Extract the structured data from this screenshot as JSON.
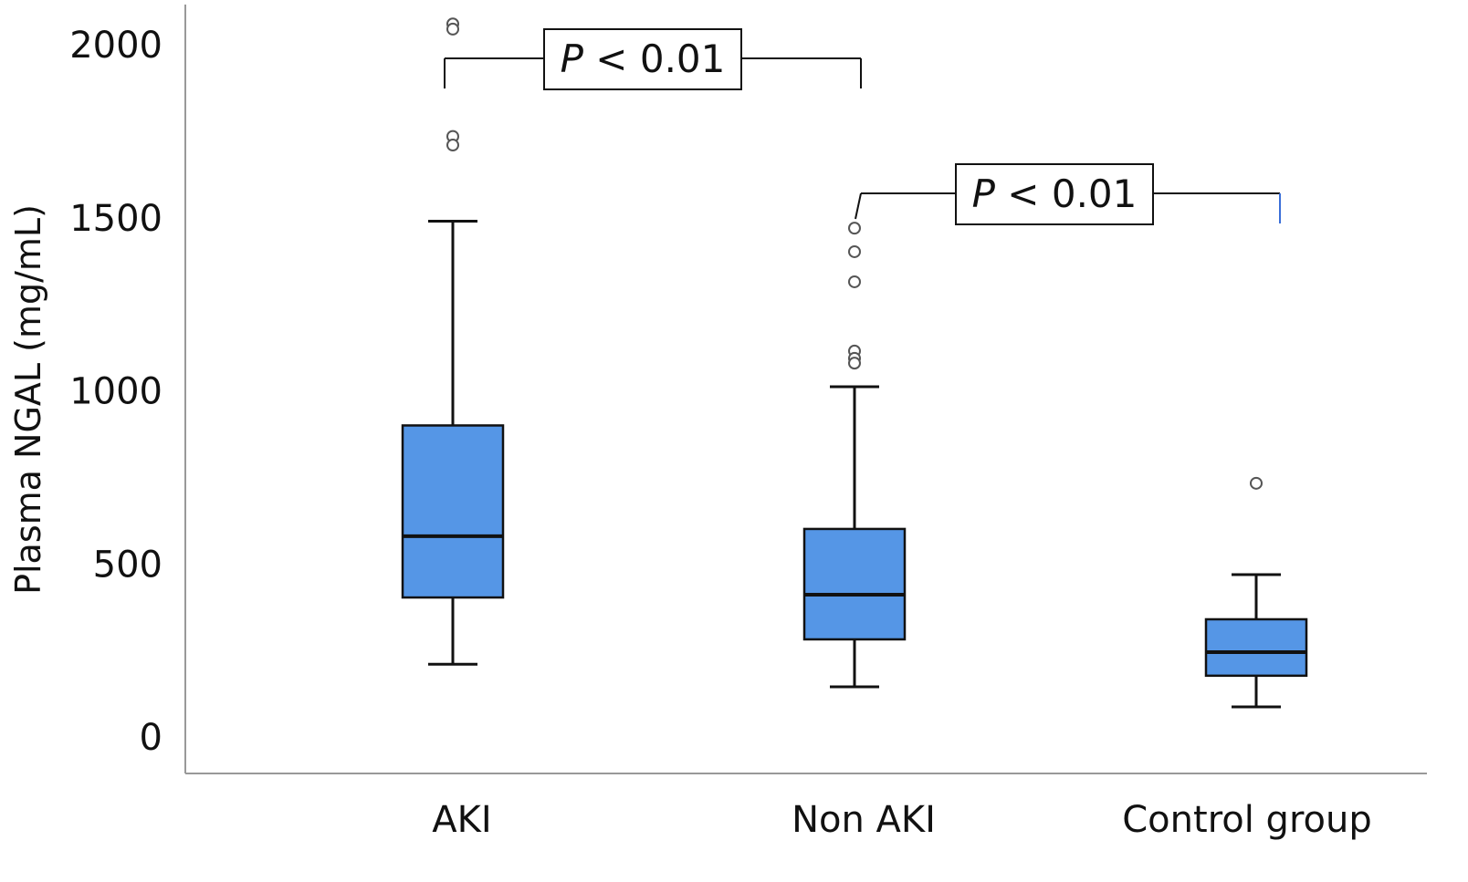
{
  "chart_data": {
    "type": "box",
    "title": "",
    "xlabel": "",
    "ylabel": "Plasma NGAL (mg/mL)",
    "ylim": [
      0,
      2000
    ],
    "yticks": [
      "0",
      "500",
      "1000",
      "1500",
      "2000"
    ],
    "grid": false,
    "categories": [
      "AKI",
      "Non AKI",
      "Control group"
    ],
    "box_color": "#5596e6",
    "boxes": [
      {
        "category": "AKI",
        "whisker_low": 210,
        "q1": 403,
        "median": 580,
        "q3": 900,
        "whisker_high": 1490,
        "outliers": [
          2060,
          2045,
          1735,
          1710
        ]
      },
      {
        "category": "Non AKI",
        "whisker_low": 145,
        "q1": 282,
        "median": 411,
        "q3": 601,
        "whisker_high": 1012,
        "outliers": [
          1470,
          1402,
          1315,
          1115,
          1094,
          1080
        ]
      },
      {
        "category": "Control group",
        "whisker_low": 87,
        "q1": 177,
        "median": 245,
        "q3": 340,
        "whisker_high": 469,
        "outliers": [
          733
        ]
      }
    ],
    "annotations": [
      {
        "from": "AKI",
        "to": "Non AKI",
        "label_italic": "P",
        "label_rest": " < 0.01"
      },
      {
        "from": "Non AKI",
        "to": "Control group",
        "label_italic": "P",
        "label_rest": " < 0.01"
      }
    ]
  }
}
